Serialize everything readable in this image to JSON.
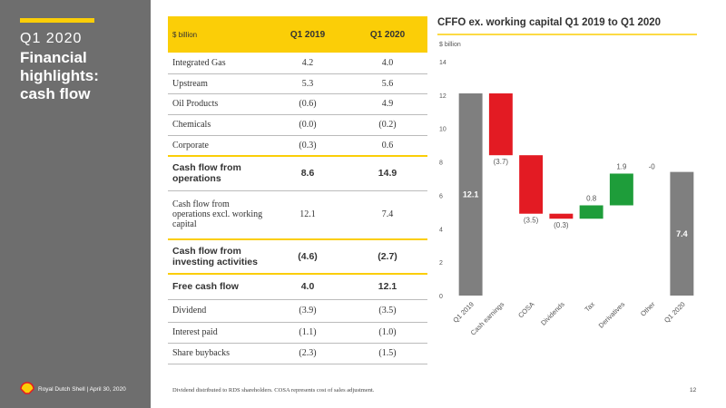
{
  "sidebar": {
    "kicker": "Q1 2020",
    "title": "Financial highlights: cash flow"
  },
  "table": {
    "header": [
      "$ billion",
      "Q1 2019",
      "Q1 2020"
    ],
    "rows": [
      [
        "Integrated Gas",
        "4.2",
        "4.0"
      ],
      [
        "Upstream",
        "5.3",
        "5.6"
      ],
      [
        "Oil Products",
        "(0.6)",
        "4.9"
      ],
      [
        "Chemicals",
        "(0.0)",
        "(0.2)"
      ],
      [
        "Corporate",
        "(0.3)",
        "0.6"
      ],
      [
        "Cash flow from operations",
        "8.6",
        "14.9"
      ],
      [
        "Cash flow from operations excl. working capital",
        "12.1",
        "7.4"
      ],
      [
        "Cash flow from investing activities",
        "(4.6)",
        "(2.7)"
      ],
      [
        "Free cash flow",
        "4.0",
        "12.1"
      ],
      [
        "Dividend",
        "(3.9)",
        "(3.5)"
      ],
      [
        "Interest paid",
        "(1.1)",
        "(1.0)"
      ],
      [
        "Share buybacks",
        "(2.3)",
        "(1.5)"
      ]
    ]
  },
  "chart_data": {
    "type": "waterfall",
    "title": "CFFO ex. working capital Q1 2019 to Q1 2020",
    "y_label": "$ billion",
    "categories": [
      "Q1 2019",
      "Cash earnings",
      "COSA",
      "Dividends",
      "Tax",
      "Derivatives",
      "Other",
      "Q1 2020"
    ],
    "values": [
      12.1,
      -3.7,
      -3.5,
      -0.3,
      0.8,
      1.9,
      0,
      7.4
    ],
    "value_labels": [
      "12.1",
      "(3.7)",
      "(3.5)",
      "(0.3)",
      "0.8",
      "1.9",
      "-0",
      "7.4"
    ],
    "measure": [
      "total",
      "relative",
      "relative",
      "relative",
      "relative",
      "relative",
      "relative",
      "total"
    ],
    "colors": {
      "total": "#7f7f7f",
      "decrease": "#e31b23",
      "increase": "#1e9d3a"
    },
    "ylim": [
      0,
      14
    ],
    "yticks": [
      0,
      2,
      4,
      6,
      8,
      10,
      12,
      14
    ]
  },
  "footer": {
    "company": "Royal Dutch Shell | April 30, 2020",
    "note": "Dividend distributed to RDS shareholders. COSA represents cost of sales adjustment.",
    "page": "12"
  }
}
